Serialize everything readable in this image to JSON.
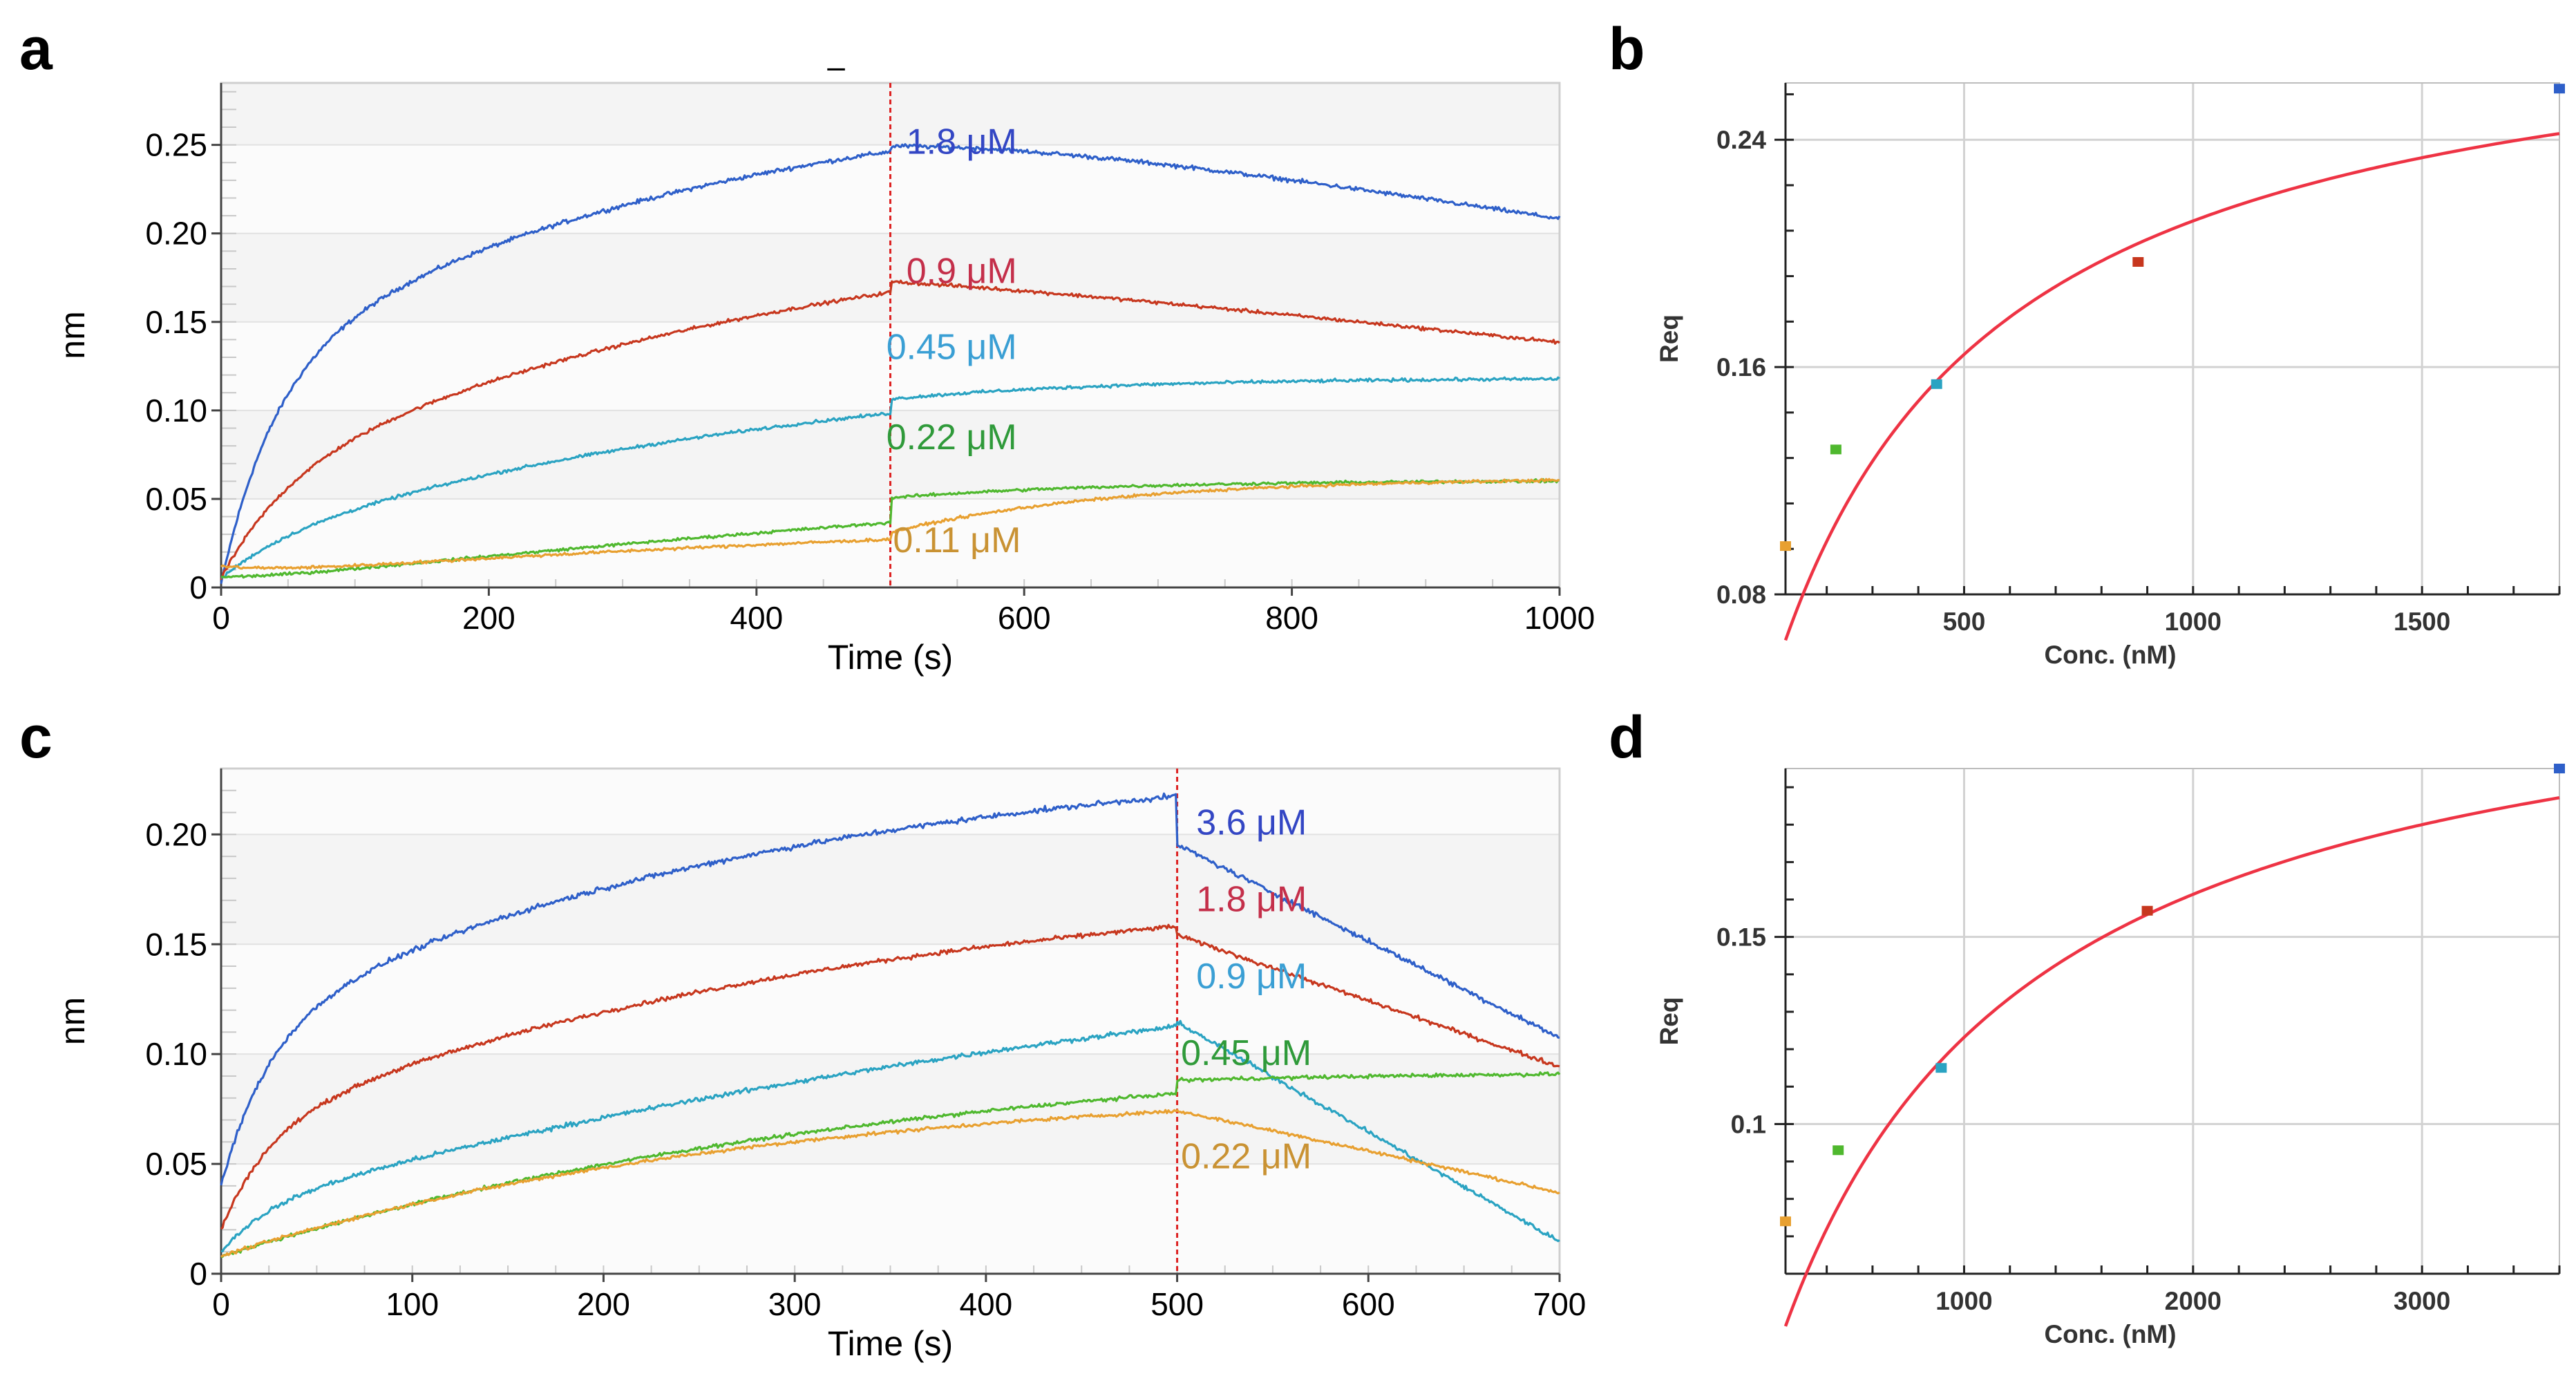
{
  "colors": {
    "blue": "#2e5fc9",
    "red": "#c7371e",
    "cyan": "#2aa3c2",
    "green": "#4fb82e",
    "orange": "#e8a030",
    "fit": "#ee3344",
    "dissoc_line": "#dd2222",
    "label_blue": "#3346c4",
    "label_red": "#c42f4a",
    "label_cyan": "#3a9fd4",
    "label_green": "#2f9a3a",
    "label_orange": "#c99233"
  },
  "chart_data": [
    {
      "id": "a",
      "panel_label": "a",
      "type": "line",
      "title": "",
      "title_mark": "–",
      "xlabel": "Time (s)",
      "ylabel": "nm",
      "xlim": [
        0,
        1000
      ],
      "ylim": [
        0,
        0.285
      ],
      "xticks": [
        0,
        200,
        400,
        600,
        800,
        1000
      ],
      "xtick_labels": [
        "0",
        "200",
        "400",
        "600",
        "800",
        "1000"
      ],
      "yticks": [
        0,
        0.05,
        0.1,
        0.15,
        0.2,
        0.25
      ],
      "ytick_labels": [
        "0",
        "0.05",
        "0.10",
        "0.15",
        "0.20",
        "0.25"
      ],
      "grid": true,
      "dissociation_start": 500,
      "series": [
        {
          "name": "1.8 µM",
          "label_text": "1.8 μM",
          "color_key": "blue",
          "label_color_key": "label_blue",
          "label_at": [
            512,
            0.245
          ],
          "t_end": 1000,
          "R0": 0.002,
          "A1": 0.12,
          "k1": 0.025,
          "A2": 0.165,
          "k2": 0.0028,
          "step": 0.003,
          "Aslow": 0.02,
          "dk": 0.00012,
          "dn": 0.0015
        },
        {
          "name": "0.9 µM",
          "label_text": "0.9 μM",
          "color_key": "red",
          "label_color_key": "label_red",
          "label_at": [
            512,
            0.172
          ],
          "t_end": 1000,
          "R0": 0.005,
          "A1": 0.055,
          "k1": 0.02,
          "A2": 0.16,
          "k2": 0.0022,
          "step": 0.006,
          "Aslow": 0.006,
          "dk": 8e-05,
          "dn": 0.0012
        },
        {
          "name": "0.45 µM",
          "label_text": "0.45 μM",
          "color_key": "cyan",
          "label_color_key": "label_cyan",
          "label_at": [
            497,
            0.129
          ],
          "t_end": 1000,
          "R0": 0.005,
          "A1": 0.02,
          "k1": 0.02,
          "A2": 0.11,
          "k2": 0.0022,
          "step": 0.008,
          "Aslow": 0.012,
          "dk": 0.0,
          "dn": 0.0011
        },
        {
          "name": "0.22 µM",
          "label_text": "0.22 μM",
          "color_key": "green",
          "label_color_key": "label_green",
          "label_at": [
            497,
            0.078
          ],
          "t_end": 1000,
          "R0": 0.006,
          "A1": -0.004,
          "k1": 0.02,
          "A2": 0.105,
          "k2": 0.0008,
          "step": 0.014,
          "Aslow": 0.01,
          "dk": 0.0,
          "dn": 0.001
        },
        {
          "name": "0.11 µM",
          "label_text": "0.11 μM",
          "color_key": "orange",
          "label_color_key": "label_orange",
          "label_at": [
            502,
            0.02
          ],
          "t_end": 1000,
          "R0": 0.012,
          "A1": -0.006,
          "k1": 0.02,
          "A2": 0.04,
          "k2": 0.0015,
          "step": 0.004,
          "Aslow": 0.031,
          "dk": 0.0,
          "dn": 0.001
        }
      ]
    },
    {
      "id": "b",
      "panel_label": "b",
      "type": "scatter",
      "title": "",
      "xlabel": "Conc. (nM)",
      "ylabel": "Req",
      "xlim": [
        110,
        1800
      ],
      "ylim": [
        0.08,
        0.26
      ],
      "xticks": [
        500,
        1000,
        1500
      ],
      "xtick_labels": [
        "500",
        "1000",
        "1500"
      ],
      "yticks": [
        0.08,
        0.16,
        0.24
      ],
      "ytick_labels": [
        "0.08",
        "0.16",
        "0.24"
      ],
      "grid": true,
      "points": [
        {
          "x": 110,
          "y": 0.097,
          "color_key": "orange"
        },
        {
          "x": 220,
          "y": 0.131,
          "color_key": "green"
        },
        {
          "x": 440,
          "y": 0.154,
          "color_key": "cyan"
        },
        {
          "x": 880,
          "y": 0.197,
          "color_key": "red"
        },
        {
          "x": 1800,
          "y": 0.258,
          "color_key": "blue"
        }
      ],
      "fit": {
        "model": "Req = Rmax*C/(KD+C)",
        "Rmax": 0.296,
        "KD": 400,
        "x_from": 110,
        "x_to": 1800,
        "color_key": "fit"
      }
    },
    {
      "id": "c",
      "panel_label": "c",
      "type": "line",
      "title": "",
      "xlabel": "Time (s)",
      "ylabel": "nm",
      "xlim": [
        0,
        700
      ],
      "ylim": [
        0,
        0.23
      ],
      "xticks": [
        0,
        100,
        200,
        300,
        400,
        500,
        600,
        700
      ],
      "xtick_labels": [
        "0",
        "100",
        "200",
        "300",
        "400",
        "500",
        "600",
        "700"
      ],
      "yticks": [
        0,
        0.05,
        0.1,
        0.15,
        0.2
      ],
      "ytick_labels": [
        "0",
        "0.05",
        "0.10",
        "0.15",
        "0.20"
      ],
      "grid": true,
      "dissociation_start": 500,
      "series": [
        {
          "name": "3.6 µM",
          "label_text": "3.6 μM",
          "color_key": "blue",
          "label_color_key": "label_blue",
          "label_at": [
            510,
            0.2
          ],
          "t_end": 700,
          "R0": 0.04,
          "A1": 0.07,
          "k1": 0.04,
          "A2": 0.13,
          "k2": 0.0035,
          "step": -0.022,
          "Aslow": 0.0,
          "dk": 0.00044,
          "dn": 0.0015
        },
        {
          "name": "1.8 µM",
          "label_text": "1.8 μM",
          "color_key": "red",
          "label_color_key": "label_red",
          "label_at": [
            510,
            0.165
          ],
          "t_end": 700,
          "R0": 0.02,
          "A1": 0.045,
          "k1": 0.04,
          "A2": 0.12,
          "k2": 0.003,
          "step": -0.004,
          "Aslow": 0.0,
          "dk": 0.0003,
          "dn": 0.0012
        },
        {
          "name": "0.9 µM",
          "label_text": "0.9 μM",
          "color_key": "cyan",
          "label_color_key": "label_cyan",
          "label_at": [
            510,
            0.13
          ],
          "t_end": 700,
          "R0": 0.01,
          "A1": 0.02,
          "k1": 0.04,
          "A2": 0.15,
          "k2": 0.0016,
          "step": 0.002,
          "Aslow": 0.0,
          "dk": 0.0005,
          "dn": 0.0013
        },
        {
          "name": "0.45 µM",
          "label_text": "0.45 μM",
          "color_key": "green",
          "label_color_key": "label_green",
          "label_at": [
            502,
            0.095
          ],
          "t_end": 700,
          "R0": 0.008,
          "A1": 0.0,
          "k1": 0.04,
          "A2": 0.1,
          "k2": 0.0027,
          "step": 0.006,
          "Aslow": 0.004,
          "dk": 0.0,
          "dn": 0.001
        },
        {
          "name": "0.22 µM",
          "label_text": "0.22 μM",
          "color_key": "orange",
          "label_color_key": "label_orange",
          "label_at": [
            502,
            0.048
          ],
          "t_end": 700,
          "R0": 0.008,
          "A1": 0.0,
          "k1": 0.04,
          "A2": 0.08,
          "k2": 0.0035,
          "step": 0.0,
          "Aslow": 0.004,
          "dk": 0.0002,
          "dn": 0.001
        }
      ]
    },
    {
      "id": "d",
      "panel_label": "d",
      "type": "scatter",
      "title": "",
      "xlabel": "Conc. (nM)",
      "ylabel": "Req",
      "xlim": [
        220,
        3600
      ],
      "ylim": [
        0.06,
        0.195
      ],
      "xticks": [
        1000,
        2000,
        3000
      ],
      "xtick_labels": [
        "1000",
        "2000",
        "3000"
      ],
      "yticks": [
        0.1,
        0.15
      ],
      "ytick_labels": [
        "0.1",
        "0.15"
      ],
      "grid": true,
      "points": [
        {
          "x": 220,
          "y": 0.074,
          "color_key": "orange"
        },
        {
          "x": 450,
          "y": 0.093,
          "color_key": "green"
        },
        {
          "x": 900,
          "y": 0.115,
          "color_key": "cyan"
        },
        {
          "x": 1800,
          "y": 0.157,
          "color_key": "red"
        },
        {
          "x": 3600,
          "y": 0.195,
          "color_key": "blue"
        }
      ],
      "fit": {
        "model": "Req = Rmax*C/(KD+C)",
        "Rmax": 0.234,
        "KD": 900,
        "x_from": 220,
        "x_to": 3600,
        "color_key": "fit"
      }
    }
  ]
}
